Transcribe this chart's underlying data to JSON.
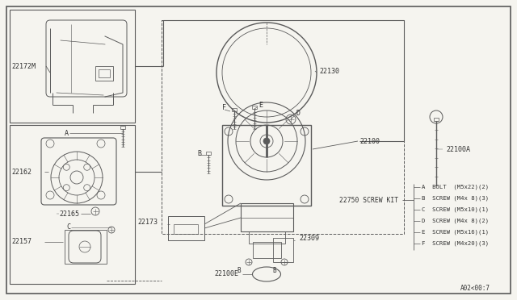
{
  "bg_color": "#f5f4ef",
  "line_color": "#5a5a5a",
  "text_color": "#333333",
  "screw_kit_lines": [
    "A  BOLT  (M5x22)(2)",
    "B  SCREW (M4x 8)(3)",
    "C  SCREW (M5x10)(1)",
    "D  SCREW (M4x 8)(2)",
    "E  SCREW (M5x16)(1)",
    "F  SCREW (M4x20)(3)"
  ],
  "part_code": "A02<00:7",
  "fig_width": 6.4,
  "fig_height": 3.72,
  "dpi": 100
}
